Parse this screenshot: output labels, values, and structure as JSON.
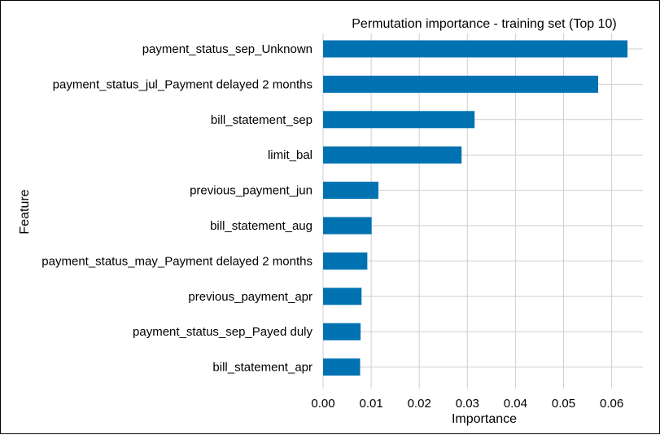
{
  "chart_data": {
    "type": "bar",
    "orientation": "horizontal",
    "title": "Permutation importance - training set (Top 10)",
    "xlabel": "Importance",
    "ylabel": "Feature",
    "xlim": [
      0,
      0.0665
    ],
    "xticks": [
      "0.00",
      "0.01",
      "0.02",
      "0.03",
      "0.04",
      "0.05",
      "0.06"
    ],
    "grid": true,
    "legend": "none",
    "bar_color": "#0072b2",
    "categories": [
      "payment_status_sep_Unknown",
      "payment_status_jul_Payment delayed 2 months",
      "bill_statement_sep",
      "limit_bal",
      "previous_payment_jun",
      "bill_statement_aug",
      "payment_status_may_Payment delayed 2 months",
      "previous_payment_apr",
      "payment_status_sep_Payed duly",
      "bill_statement_apr"
    ],
    "values": [
      0.0633,
      0.0572,
      0.0315,
      0.0288,
      0.0115,
      0.0101,
      0.0092,
      0.008,
      0.0078,
      0.0077
    ]
  }
}
